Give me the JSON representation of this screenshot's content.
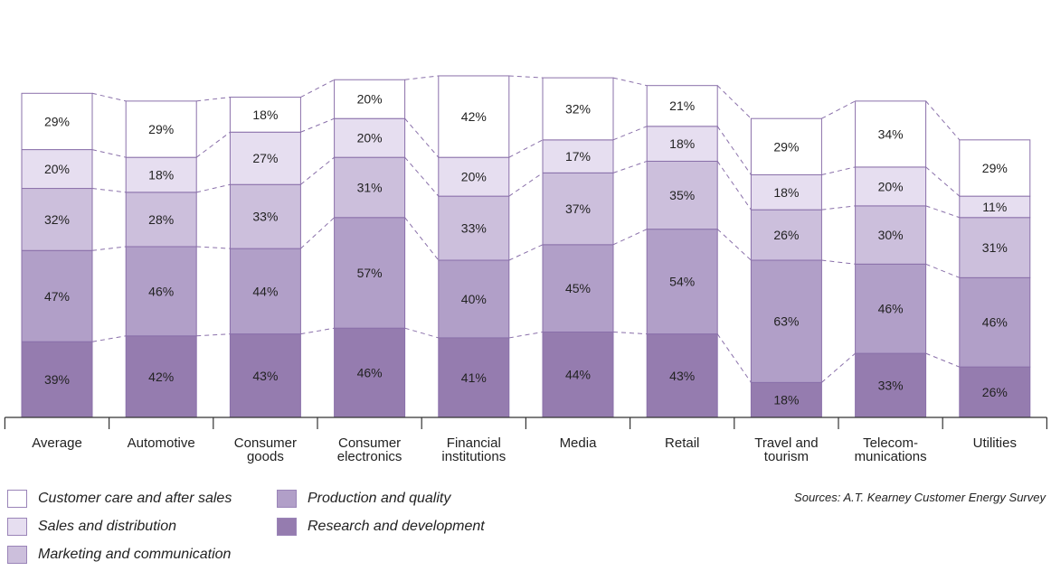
{
  "chart_data": {
    "type": "bar",
    "stacked": true,
    "categories": [
      "Average",
      "Automotive",
      "Consumer\ngoods",
      "Consumer\nelectronics",
      "Financial\ninstitutions",
      "Media",
      "Retail",
      "Travel and\ntourism",
      "Telecom-\nmunications",
      "Utilities"
    ],
    "series": [
      {
        "name": "Research and development",
        "color": "#957caf",
        "values": [
          39,
          42,
          43,
          46,
          41,
          44,
          43,
          18,
          33,
          26
        ]
      },
      {
        "name": "Production and quality",
        "color": "#b19fc8",
        "values": [
          47,
          46,
          44,
          57,
          40,
          45,
          54,
          63,
          46,
          46
        ]
      },
      {
        "name": "Marketing and communication",
        "color": "#ccbfdc",
        "values": [
          32,
          28,
          33,
          31,
          33,
          37,
          35,
          26,
          30,
          31
        ]
      },
      {
        "name": "Sales and distribution",
        "color": "#e6def0",
        "values": [
          20,
          18,
          27,
          20,
          20,
          17,
          18,
          18,
          20,
          11
        ]
      },
      {
        "name": "Customer care and after sales",
        "color": "#ffffff",
        "values": [
          29,
          29,
          18,
          20,
          42,
          32,
          21,
          29,
          34,
          29
        ]
      }
    ],
    "value_suffix": "%",
    "grid": false,
    "legend_position": "bottom-left",
    "source": "Sources: A.T. Kearney Customer Energy Survey"
  },
  "legend": {
    "items": [
      {
        "label": "Customer care and after sales",
        "color": "#ffffff"
      },
      {
        "label": "Sales and distribution",
        "color": "#e6def0"
      },
      {
        "label": "Marketing and communication",
        "color": "#ccbfdc"
      },
      {
        "label": "Production and quality",
        "color": "#b19fc8"
      },
      {
        "label": "Research and development",
        "color": "#957caf"
      }
    ]
  },
  "colors": {
    "border": "#8a70aa",
    "connector": "#8a70aa",
    "axis": "#333333"
  }
}
